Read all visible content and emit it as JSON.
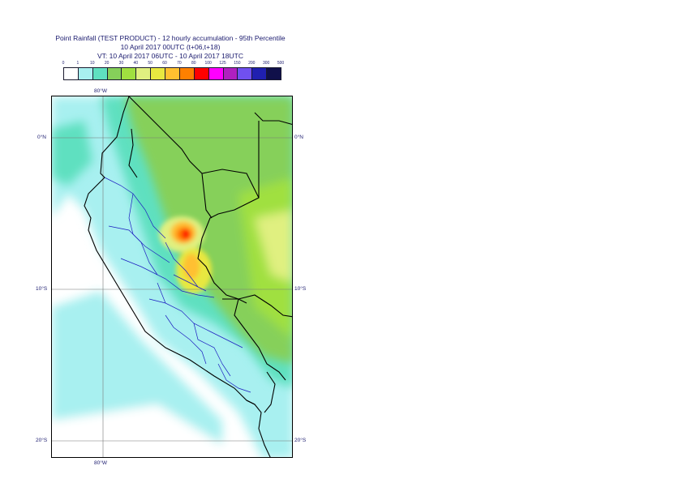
{
  "title": {
    "line1": "Point Rainfall (TEST PRODUCT) - 12 hourly accumulation - 95th Percentile",
    "line2": "10 April 2017 00UTC (t+06,t+18)",
    "line3": "VT: 10 April 2017 06UTC - 10 April 2017 18UTC"
  },
  "legend": {
    "thresholds": [
      "0",
      "1",
      "10",
      "20",
      "30",
      "40",
      "50",
      "60",
      "70",
      "80",
      "100",
      "125",
      "150",
      "200",
      "300",
      "500"
    ],
    "colors": [
      "#ffffff",
      "#a8f0f0",
      "#5fe0c0",
      "#86d05a",
      "#a0e040",
      "#e0f080",
      "#e8e840",
      "#ffc030",
      "#ff8000",
      "#ff0000",
      "#ff00ff",
      "#b020c0",
      "#7050f0",
      "#2020b0",
      "#10104a"
    ]
  },
  "map": {
    "lat_labels": {
      "n0": "0°N",
      "s10": "10°S",
      "s20": "20°S"
    },
    "lon_labels": {
      "w80": "80°W"
    }
  }
}
